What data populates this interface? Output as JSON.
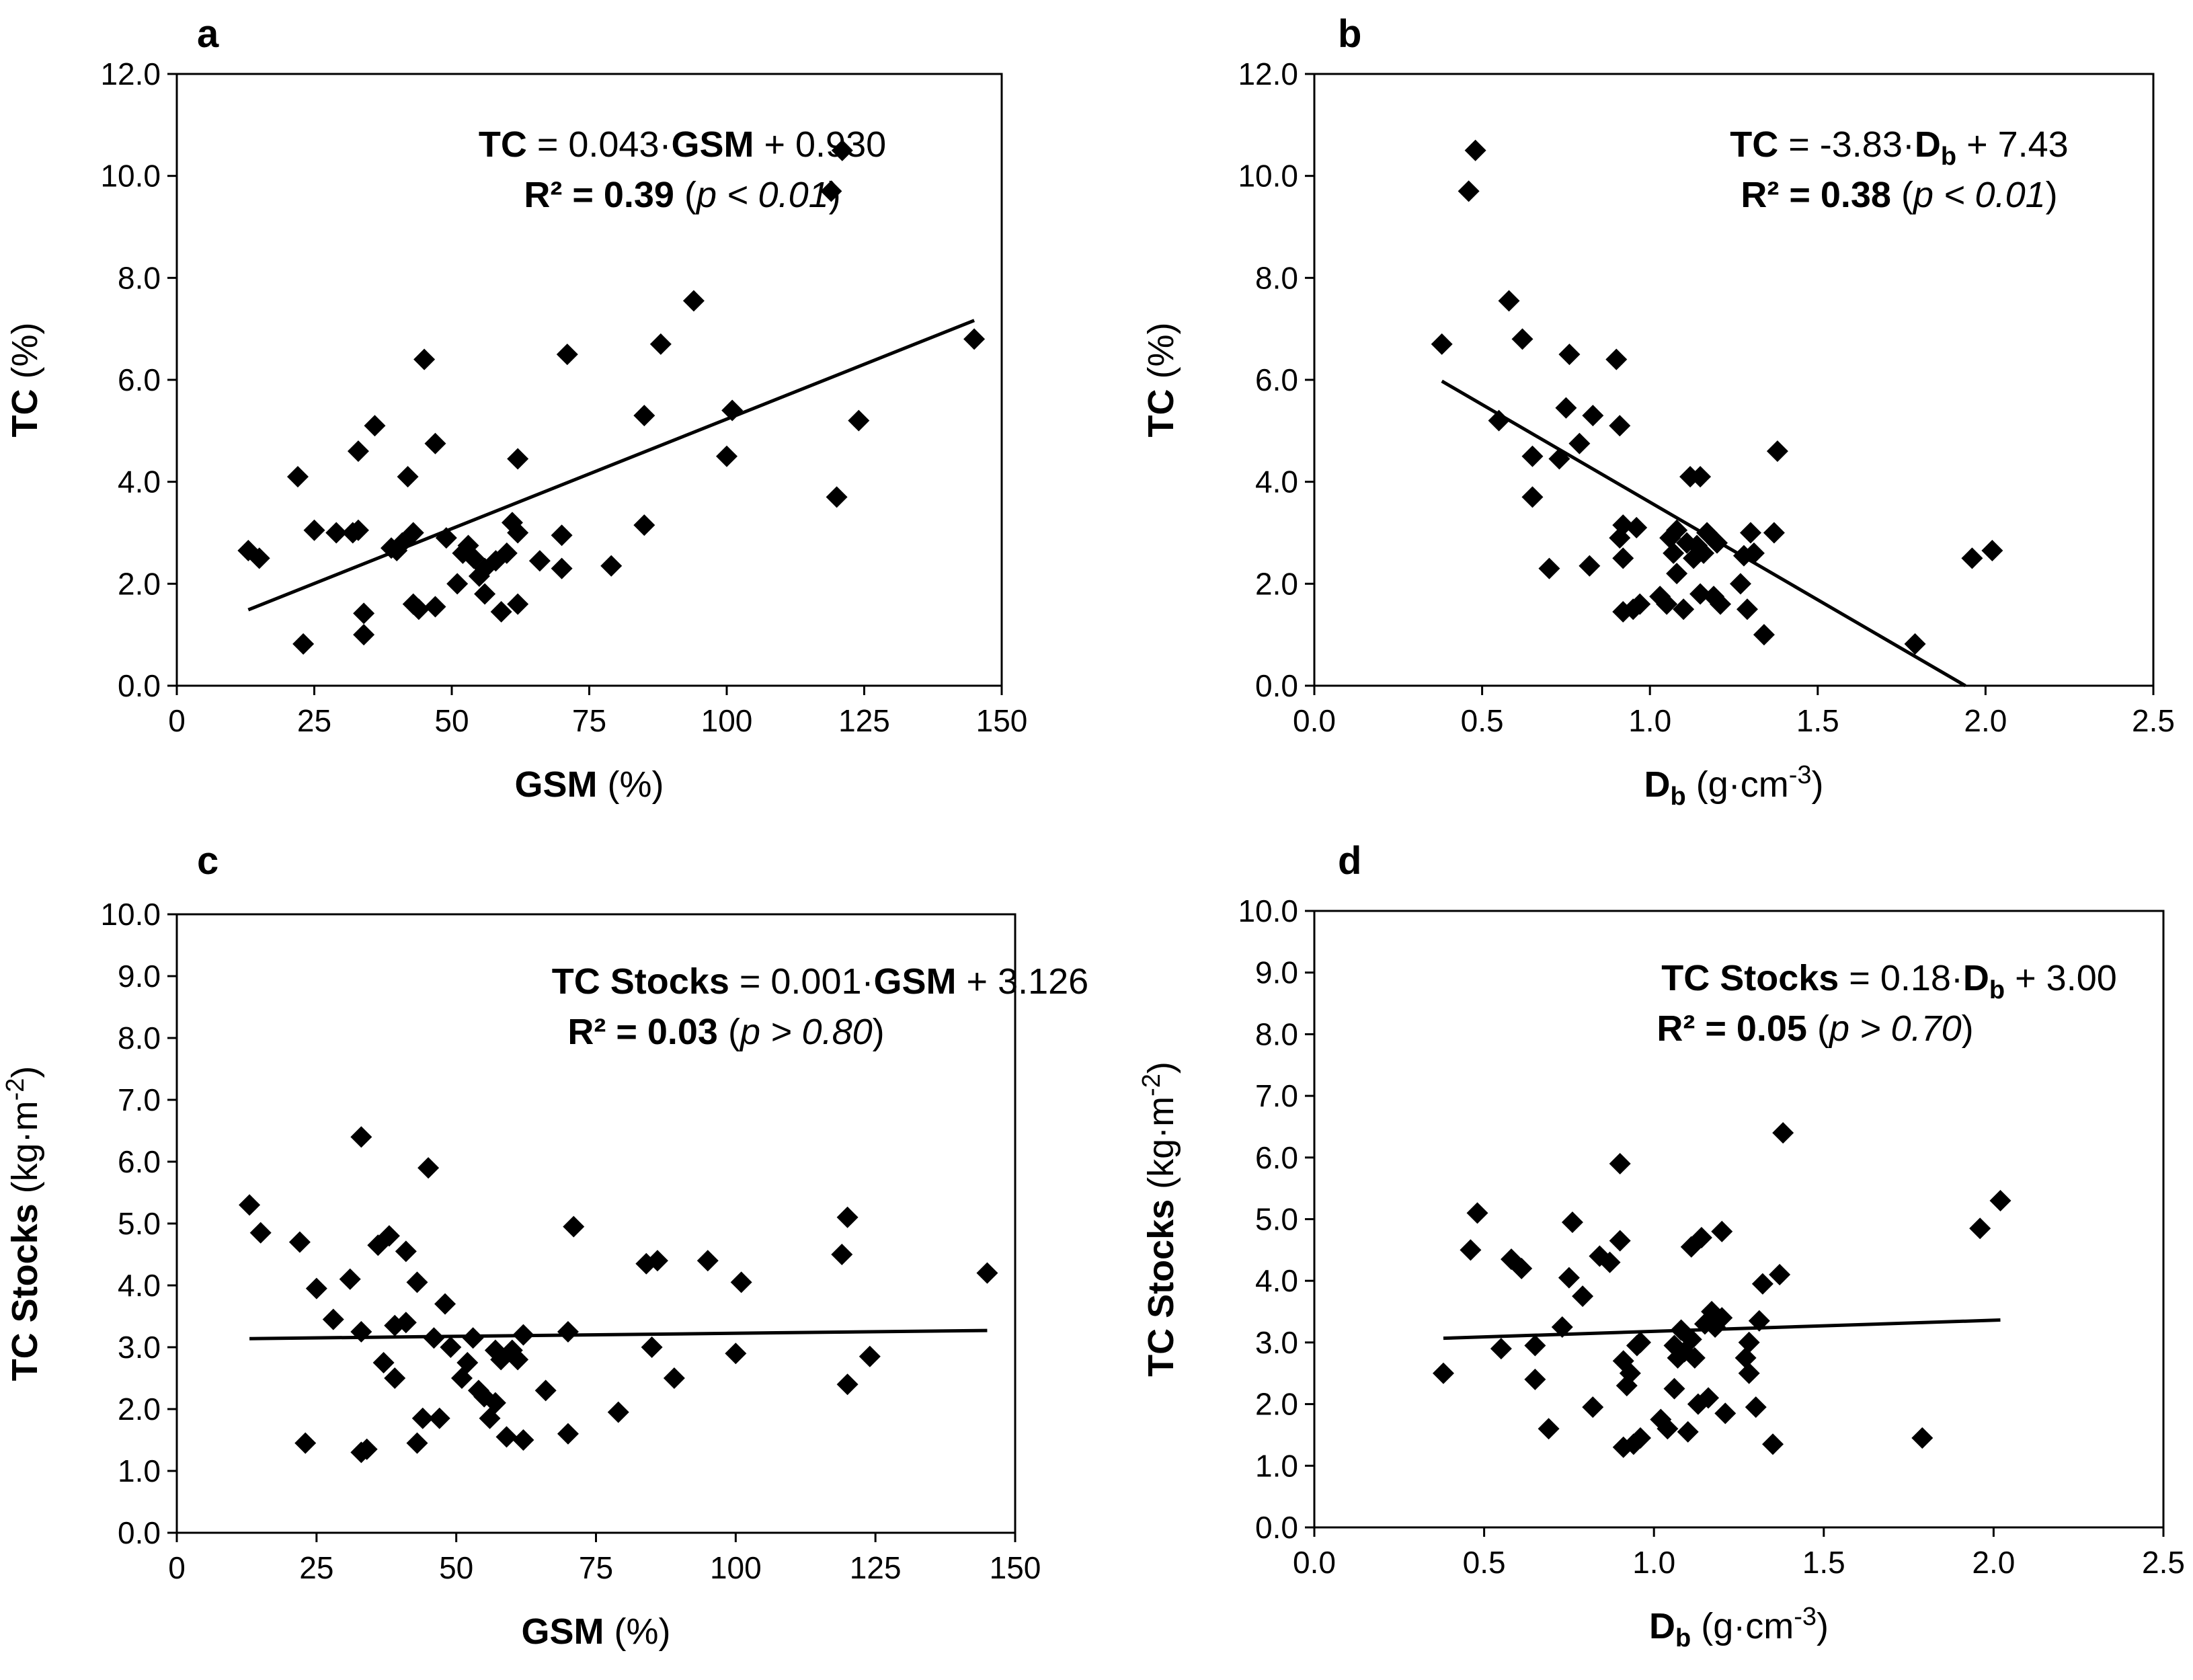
{
  "chart_data": [
    {
      "panel": "a",
      "type": "scatter",
      "xlabel": {
        "main": "GSM",
        "units": " (%)"
      },
      "ylabel": {
        "main": "TC",
        "units": " (%)"
      },
      "xlim": [
        0,
        150
      ],
      "xticks": [
        0,
        25,
        50,
        75,
        100,
        125,
        150
      ],
      "xdec": 0,
      "ylim": [
        0,
        12
      ],
      "yticks": [
        0,
        2,
        4,
        6,
        8,
        10,
        12
      ],
      "ydec": 1,
      "fit": {
        "slope": 0.043,
        "intercept": 0.93,
        "x_range": [
          13,
          145
        ]
      },
      "equation": {
        "lhs": "TC",
        "eq1": " = 0.043·",
        "var": "GSM",
        "eq2": " + 0.930"
      },
      "r2": {
        "label": "R² = 0.39",
        "p_open": "(",
        "p_var": "p",
        "p_rest": " < 0.01",
        "p_close": ")"
      },
      "points": [
        [
          13,
          2.65
        ],
        [
          15,
          2.5
        ],
        [
          22,
          4.1
        ],
        [
          23,
          0.82
        ],
        [
          25,
          3.05
        ],
        [
          29,
          3.0
        ],
        [
          32,
          3.0
        ],
        [
          33,
          3.05
        ],
        [
          33,
          4.6
        ],
        [
          34,
          1.42
        ],
        [
          34,
          1.0
        ],
        [
          36,
          5.1
        ],
        [
          39,
          2.7
        ],
        [
          40,
          2.65
        ],
        [
          41,
          2.8
        ],
        [
          42,
          4.1
        ],
        [
          43,
          3.0
        ],
        [
          43,
          1.6
        ],
        [
          44,
          1.5
        ],
        [
          45,
          6.4
        ],
        [
          47,
          1.55
        ],
        [
          47,
          4.75
        ],
        [
          49,
          2.9
        ],
        [
          51,
          2.0
        ],
        [
          52,
          2.6
        ],
        [
          53,
          2.75
        ],
        [
          54,
          2.5
        ],
        [
          55,
          2.15
        ],
        [
          56,
          2.3
        ],
        [
          56,
          1.8
        ],
        [
          58,
          2.45
        ],
        [
          59,
          1.45
        ],
        [
          60,
          2.6
        ],
        [
          61,
          3.2
        ],
        [
          62,
          3.0
        ],
        [
          62,
          1.6
        ],
        [
          62,
          4.45
        ],
        [
          66,
          2.45
        ],
        [
          70,
          2.3
        ],
        [
          70,
          2.95
        ],
        [
          71,
          6.5
        ],
        [
          79,
          2.35
        ],
        [
          85,
          3.15
        ],
        [
          85,
          5.3
        ],
        [
          88,
          6.7
        ],
        [
          94,
          7.55
        ],
        [
          100,
          4.5
        ],
        [
          101,
          5.4
        ],
        [
          119,
          9.7
        ],
        [
          120,
          3.7
        ],
        [
          121,
          10.5
        ],
        [
          124,
          5.2
        ],
        [
          145,
          6.8
        ]
      ]
    },
    {
      "panel": "b",
      "type": "scatter",
      "xlabel": {
        "main": "D",
        "sub": "b",
        "units": " (g·cm",
        "sup": "-3",
        "close": ")"
      },
      "ylabel": {
        "main": "TC",
        "units": " (%)"
      },
      "xlim": [
        0,
        2.5
      ],
      "xticks": [
        0,
        0.5,
        1.0,
        1.5,
        2.0,
        2.5
      ],
      "xdec": 1,
      "ylim": [
        0,
        12
      ],
      "yticks": [
        0,
        2,
        4,
        6,
        8,
        10,
        12
      ],
      "ydec": 1,
      "fit": {
        "slope": -3.83,
        "intercept": 7.43,
        "x_range": [
          0.38,
          1.94
        ]
      },
      "equation": {
        "lhs": "TC",
        "eq1": " = -3.83·",
        "var": "D",
        "var_sub": "b",
        "eq2": " + 7.43"
      },
      "r2": {
        "label": "R² = 0.38",
        "p_open": "(",
        "p_var": "p",
        "p_rest": " < 0.01",
        "p_close": ")"
      },
      "points": [
        [
          0.38,
          6.7
        ],
        [
          0.46,
          9.7
        ],
        [
          0.48,
          10.5
        ],
        [
          0.55,
          5.2
        ],
        [
          0.58,
          7.55
        ],
        [
          0.62,
          6.8
        ],
        [
          0.65,
          4.5
        ],
        [
          0.65,
          3.7
        ],
        [
          0.7,
          2.3
        ],
        [
          0.73,
          4.45
        ],
        [
          0.75,
          5.45
        ],
        [
          0.76,
          6.5
        ],
        [
          0.79,
          4.75
        ],
        [
          0.82,
          2.35
        ],
        [
          0.83,
          5.3
        ],
        [
          0.9,
          6.4
        ],
        [
          0.91,
          5.1
        ],
        [
          0.91,
          2.9
        ],
        [
          0.92,
          3.15
        ],
        [
          0.92,
          2.5
        ],
        [
          0.92,
          1.45
        ],
        [
          0.95,
          1.5
        ],
        [
          0.96,
          3.1
        ],
        [
          0.97,
          1.6
        ],
        [
          1.03,
          1.75
        ],
        [
          1.05,
          1.6
        ],
        [
          1.06,
          2.9
        ],
        [
          1.07,
          2.6
        ],
        [
          1.08,
          3.05
        ],
        [
          1.08,
          2.2
        ],
        [
          1.1,
          1.5
        ],
        [
          1.11,
          2.8
        ],
        [
          1.12,
          4.1
        ],
        [
          1.13,
          2.5
        ],
        [
          1.14,
          2.75
        ],
        [
          1.15,
          1.8
        ],
        [
          1.15,
          4.1
        ],
        [
          1.16,
          2.6
        ],
        [
          1.17,
          3.0
        ],
        [
          1.19,
          1.75
        ],
        [
          1.2,
          2.8
        ],
        [
          1.21,
          1.6
        ],
        [
          1.27,
          2.0
        ],
        [
          1.28,
          2.55
        ],
        [
          1.29,
          1.5
        ],
        [
          1.3,
          3.0
        ],
        [
          1.31,
          2.6
        ],
        [
          1.34,
          1.0
        ],
        [
          1.37,
          3.0
        ],
        [
          1.38,
          4.6
        ],
        [
          1.79,
          0.82
        ],
        [
          1.96,
          2.5
        ],
        [
          2.02,
          2.65
        ]
      ]
    },
    {
      "panel": "c",
      "type": "scatter",
      "xlabel": {
        "main": "GSM",
        "units": " (%)"
      },
      "ylabel": {
        "main": "TC Stocks",
        "units": " (kg·m",
        "sup": "-2",
        "close": ")"
      },
      "xlim": [
        0,
        150
      ],
      "xticks": [
        0,
        25,
        50,
        75,
        100,
        125,
        150
      ],
      "xdec": 0,
      "ylim": [
        0,
        10
      ],
      "yticks": [
        0,
        1,
        2,
        3,
        4,
        5,
        6,
        7,
        8,
        9,
        10
      ],
      "ydec": 1,
      "fit": {
        "slope": 0.001,
        "intercept": 3.126,
        "x_range": [
          13,
          145
        ]
      },
      "equation": {
        "lhs": "TC Stocks",
        "eq1": " = 0.001·",
        "var": "GSM",
        "eq2": " + 3.126"
      },
      "r2": {
        "label": "R² = 0.03",
        "p_open": "(",
        "p_var": "p",
        "p_rest": " > 0.80",
        "p_close": ")"
      },
      "points": [
        [
          13,
          5.3
        ],
        [
          15,
          4.85
        ],
        [
          22,
          4.7
        ],
        [
          23,
          1.45
        ],
        [
          25,
          3.95
        ],
        [
          28,
          3.45
        ],
        [
          31,
          4.1
        ],
        [
          33,
          6.4
        ],
        [
          33,
          3.25
        ],
        [
          33,
          1.3
        ],
        [
          34,
          1.35
        ],
        [
          36,
          4.65
        ],
        [
          37,
          2.75
        ],
        [
          38,
          4.8
        ],
        [
          39,
          2.5
        ],
        [
          39,
          3.35
        ],
        [
          41,
          3.4
        ],
        [
          41,
          4.55
        ],
        [
          43,
          4.05
        ],
        [
          43,
          1.45
        ],
        [
          44,
          1.85
        ],
        [
          45,
          5.9
        ],
        [
          46,
          3.15
        ],
        [
          47,
          1.85
        ],
        [
          48,
          3.7
        ],
        [
          49,
          3.0
        ],
        [
          51,
          2.5
        ],
        [
          52,
          2.75
        ],
        [
          53,
          3.15
        ],
        [
          54,
          2.3
        ],
        [
          55,
          2.2
        ],
        [
          56,
          1.85
        ],
        [
          57,
          2.95
        ],
        [
          57,
          2.1
        ],
        [
          58,
          2.8
        ],
        [
          59,
          1.55
        ],
        [
          60,
          2.95
        ],
        [
          61,
          2.8
        ],
        [
          62,
          3.2
        ],
        [
          62,
          1.5
        ],
        [
          66,
          2.3
        ],
        [
          70,
          1.6
        ],
        [
          70,
          3.25
        ],
        [
          71,
          4.95
        ],
        [
          79,
          1.95
        ],
        [
          84,
          4.35
        ],
        [
          85,
          3.0
        ],
        [
          86,
          4.4
        ],
        [
          89,
          2.5
        ],
        [
          95,
          4.4
        ],
        [
          100,
          2.9
        ],
        [
          101,
          4.05
        ],
        [
          119,
          4.5
        ],
        [
          120,
          5.1
        ],
        [
          120,
          2.4
        ],
        [
          124,
          2.85
        ],
        [
          145,
          4.2
        ]
      ]
    },
    {
      "panel": "d",
      "type": "scatter",
      "xlabel": {
        "main": "D",
        "sub": "b",
        "units": " (g·cm",
        "sup": "-3",
        "close": ")"
      },
      "ylabel": {
        "main": "TC Stocks",
        "units": " (kg·m",
        "sup": "-2",
        "close": ")"
      },
      "xlim": [
        0,
        2.5
      ],
      "xticks": [
        0,
        0.5,
        1.0,
        1.5,
        2.0,
        2.5
      ],
      "xdec": 1,
      "ylim": [
        0,
        10
      ],
      "yticks": [
        0,
        1,
        2,
        3,
        4,
        5,
        6,
        7,
        8,
        9,
        10
      ],
      "ydec": 1,
      "fit": {
        "slope": 0.18,
        "intercept": 3.0,
        "x_range": [
          0.38,
          2.02
        ]
      },
      "equation": {
        "lhs": "TC Stocks",
        "eq1": " = 0.18·",
        "var": "D",
        "var_sub": "b",
        "eq2": " + 3.00"
      },
      "r2": {
        "label": "R² = 0.05",
        "p_open": "(",
        "p_var": "p",
        "p_rest": " > 0.70",
        "p_close": ")"
      },
      "points": [
        [
          0.38,
          2.5
        ],
        [
          0.46,
          4.5
        ],
        [
          0.48,
          5.1
        ],
        [
          0.55,
          2.9
        ],
        [
          0.58,
          4.35
        ],
        [
          0.61,
          4.2
        ],
        [
          0.65,
          2.95
        ],
        [
          0.65,
          2.4
        ],
        [
          0.69,
          1.6
        ],
        [
          0.73,
          3.25
        ],
        [
          0.75,
          4.05
        ],
        [
          0.76,
          4.95
        ],
        [
          0.79,
          3.75
        ],
        [
          0.82,
          1.95
        ],
        [
          0.84,
          4.4
        ],
        [
          0.87,
          4.3
        ],
        [
          0.9,
          4.65
        ],
        [
          0.9,
          5.9
        ],
        [
          0.91,
          2.7
        ],
        [
          0.91,
          1.3
        ],
        [
          0.92,
          2.3
        ],
        [
          0.93,
          2.5
        ],
        [
          0.94,
          1.35
        ],
        [
          0.95,
          2.95
        ],
        [
          0.96,
          3.0
        ],
        [
          0.96,
          1.45
        ],
        [
          1.02,
          1.75
        ],
        [
          1.04,
          1.6
        ],
        [
          1.06,
          2.95
        ],
        [
          1.06,
          2.25
        ],
        [
          1.07,
          2.75
        ],
        [
          1.08,
          3.2
        ],
        [
          1.09,
          2.85
        ],
        [
          1.1,
          1.55
        ],
        [
          1.11,
          3.05
        ],
        [
          1.11,
          4.55
        ],
        [
          1.12,
          2.75
        ],
        [
          1.13,
          2.0
        ],
        [
          1.14,
          4.7
        ],
        [
          1.15,
          3.3
        ],
        [
          1.16,
          2.1
        ],
        [
          1.17,
          3.5
        ],
        [
          1.18,
          3.25
        ],
        [
          1.2,
          4.8
        ],
        [
          1.2,
          3.4
        ],
        [
          1.21,
          1.85
        ],
        [
          1.27,
          2.75
        ],
        [
          1.28,
          2.5
        ],
        [
          1.28,
          3.0
        ],
        [
          1.3,
          1.95
        ],
        [
          1.31,
          3.35
        ],
        [
          1.32,
          3.95
        ],
        [
          1.35,
          1.35
        ],
        [
          1.37,
          4.1
        ],
        [
          1.38,
          6.4
        ],
        [
          1.79,
          1.45
        ],
        [
          1.96,
          4.85
        ],
        [
          2.02,
          5.3
        ]
      ]
    }
  ]
}
